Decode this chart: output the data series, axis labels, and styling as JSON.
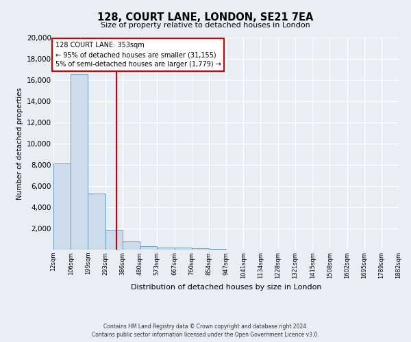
{
  "title": "128, COURT LANE, LONDON, SE21 7EA",
  "subtitle": "Size of property relative to detached houses in London",
  "xlabel": "Distribution of detached houses by size in London",
  "ylabel": "Number of detached properties",
  "bin_labels": [
    "12sqm",
    "106sqm",
    "199sqm",
    "293sqm",
    "386sqm",
    "480sqm",
    "573sqm",
    "667sqm",
    "760sqm",
    "854sqm",
    "947sqm",
    "1041sqm",
    "1134sqm",
    "1228sqm",
    "1321sqm",
    "1415sqm",
    "1508sqm",
    "1602sqm",
    "1695sqm",
    "1789sqm",
    "1882sqm"
  ],
  "bin_edges": [
    12,
    106,
    199,
    293,
    386,
    480,
    573,
    667,
    760,
    854,
    947,
    1041,
    1134,
    1228,
    1321,
    1415,
    1508,
    1602,
    1695,
    1789,
    1882
  ],
  "bar_heights": [
    8100,
    16550,
    5300,
    1850,
    750,
    300,
    200,
    200,
    100,
    50,
    0,
    0,
    0,
    0,
    0,
    0,
    0,
    0,
    0,
    0
  ],
  "bar_color": "#cddceb",
  "bar_edge_color": "#6699bb",
  "property_value": 353,
  "vline_color": "#cc0000",
  "annotation_text": "128 COURT LANE: 353sqm\n← 95% of detached houses are smaller (31,155)\n5% of semi-detached houses are larger (1,779) →",
  "annotation_box_color": "#ffffff",
  "annotation_box_edge_color": "#cc0000",
  "ylim": [
    0,
    20000
  ],
  "yticks": [
    0,
    2000,
    4000,
    6000,
    8000,
    10000,
    12000,
    14000,
    16000,
    18000,
    20000
  ],
  "footer_line1": "Contains HM Land Registry data © Crown copyright and database right 2024.",
  "footer_line2": "Contains public sector information licensed under the Open Government Licence v3.0.",
  "bg_color": "#e8eef4",
  "plot_bg_color": "#e8eef4"
}
